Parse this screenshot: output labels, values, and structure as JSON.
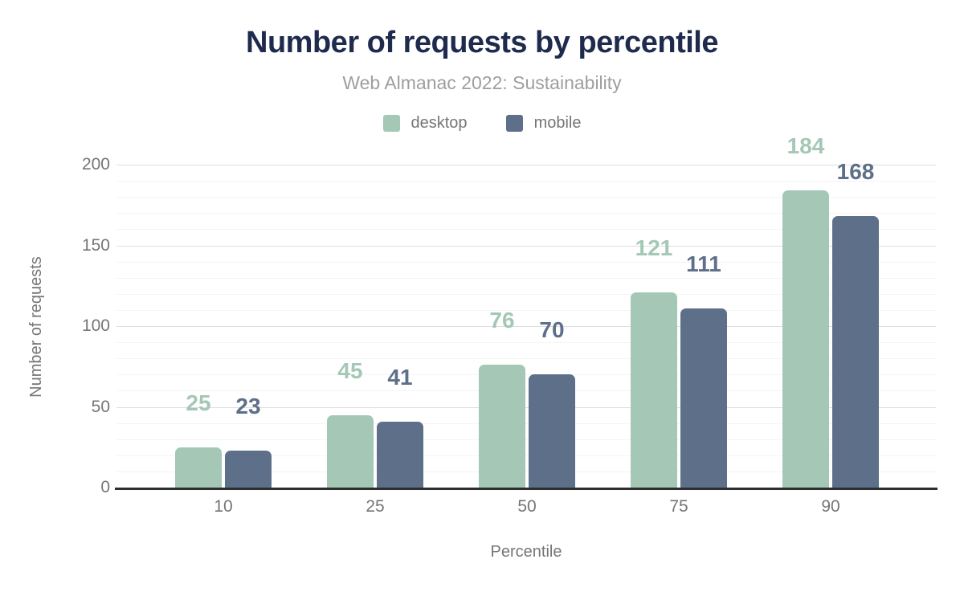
{
  "chart": {
    "title": "Number of requests by percentile",
    "subtitle": "Web Almanac 2022: Sustainability"
  },
  "colors": {
    "desktop": "#a4c8b5",
    "mobile": "#5e7089",
    "title_text": "#1f2b4d",
    "subtitle_text": "#9e9e9e",
    "axis_text": "#757575",
    "axis_line": "#2e2e2e",
    "grid_major": "#dedede",
    "grid_minor": "#f4f4f4"
  },
  "chart_data": {
    "type": "bar",
    "title": "Number of requests by percentile",
    "subtitle": "Web Almanac 2022: Sustainability",
    "categories": [
      "10",
      "25",
      "50",
      "75",
      "90"
    ],
    "series": [
      {
        "name": "desktop",
        "values": [
          25,
          45,
          76,
          121,
          184
        ]
      },
      {
        "name": "mobile",
        "values": [
          23,
          41,
          70,
          111,
          168
        ]
      }
    ],
    "xlabel": "Percentile",
    "ylabel": "Number of requests",
    "ylim": [
      0,
      200
    ],
    "yticks": [
      0,
      50,
      100,
      150,
      200
    ],
    "minor_grid_step": 10,
    "grid": true,
    "legend_position": "top",
    "data_labels": true
  }
}
